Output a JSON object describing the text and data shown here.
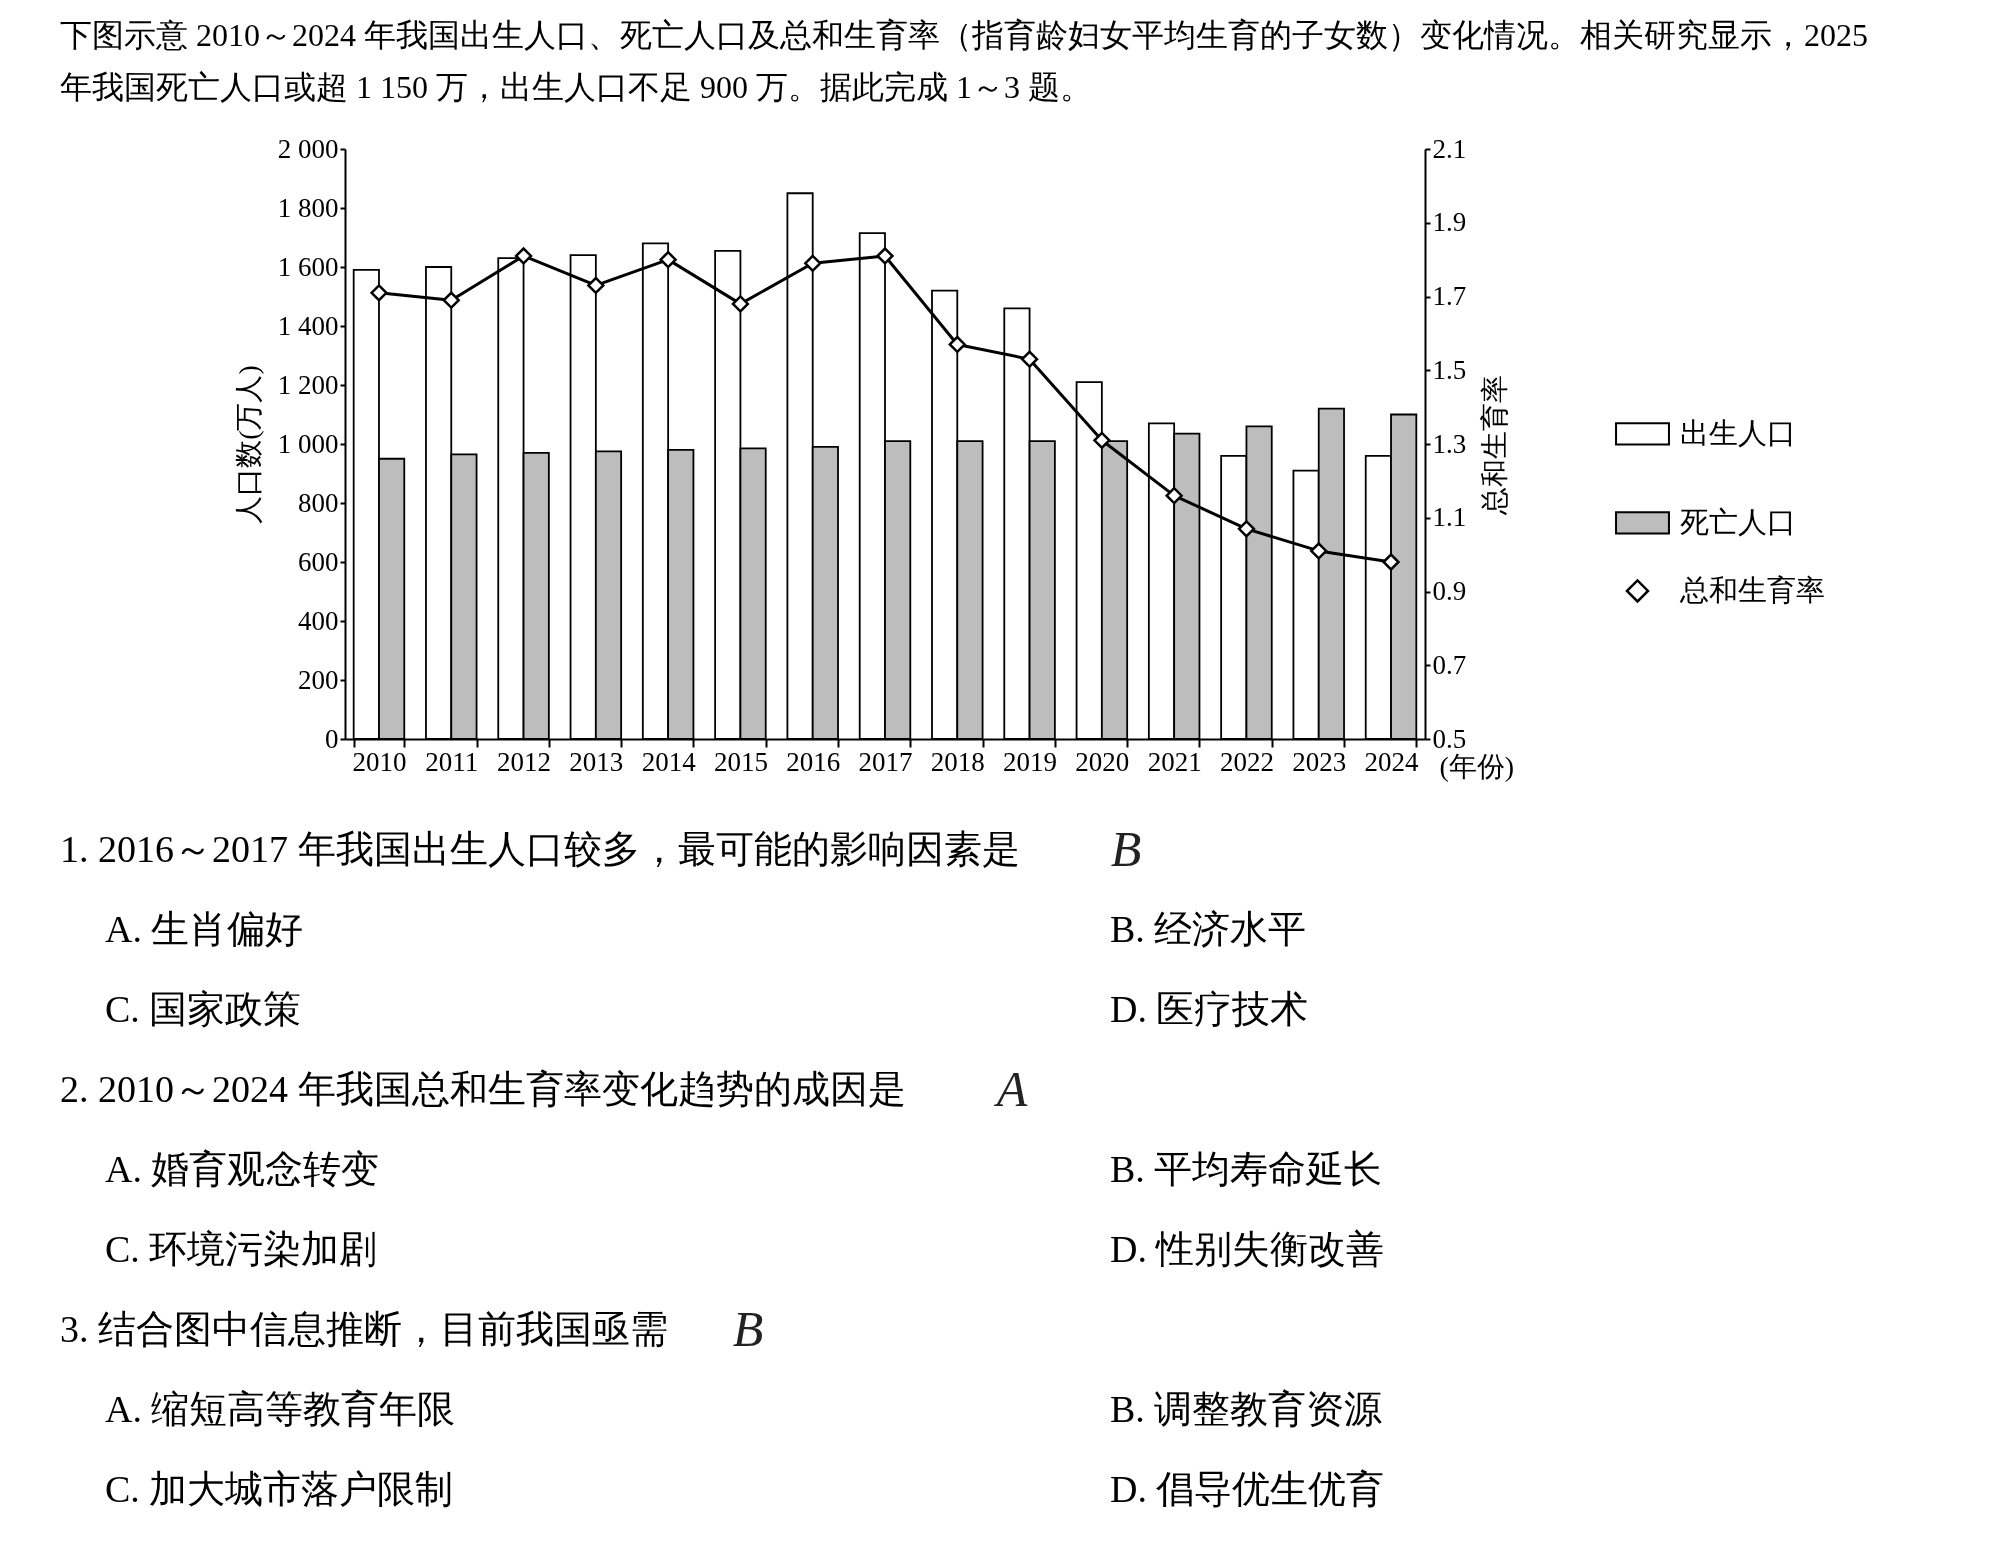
{
  "chart_data": {
    "type": "bar",
    "title": "下图示意 2010～2024 年我国出生人口、死亡人口及总和生育率（指育龄妇女平均生育的子女数）变化情况。相关研究显示，2025 年我国死亡人口或超 1 150 万，出生人口不足 900 万。据此完成 1～3 题。",
    "categories": [
      "2010",
      "2011",
      "2012",
      "2013",
      "2014",
      "2015",
      "2016",
      "2017",
      "2018",
      "2019",
      "2020",
      "2021",
      "2022",
      "2023",
      "2024"
    ],
    "xlabel": "(年份)",
    "ylabel": "人口数(万人)",
    "y2label": "总和生育率",
    "series": [
      {
        "name": "出生人口",
        "color": "#ffffff",
        "values": [
          1590,
          1600,
          1630,
          1640,
          1680,
          1655,
          1850,
          1715,
          1520,
          1460,
          1210,
          1070,
          960,
          910,
          960
        ]
      },
      {
        "name": "死亡人口",
        "color": "#bdbdbd",
        "values": [
          950,
          965,
          970,
          975,
          980,
          985,
          990,
          1010,
          1010,
          1010,
          1010,
          1035,
          1060,
          1120,
          1100
        ]
      },
      {
        "name": "总和生育率",
        "type": "line",
        "axis": "y2",
        "color": "#000000",
        "values": [
          1.71,
          1.69,
          1.81,
          1.73,
          1.8,
          1.68,
          1.79,
          1.81,
          1.57,
          1.53,
          1.31,
          1.16,
          1.07,
          1.01,
          0.98
        ]
      }
    ],
    "ylim": [
      0,
      2000
    ],
    "yticks": [
      0,
      200,
      400,
      600,
      800,
      {
        "value": 1000,
        "label": "1 000"
      },
      {
        "value": 1200,
        "label": "1 200"
      },
      {
        "value": 1400,
        "label": "1 400"
      },
      {
        "value": 1600,
        "label": "1 600"
      },
      {
        "value": 1800,
        "label": "1 800"
      },
      {
        "value": 2000,
        "label": "2 000"
      }
    ],
    "y2lim": [
      0.5,
      2.1
    ],
    "y2ticks": [
      0.5,
      0.7,
      0.9,
      1.1,
      1.3,
      1.5,
      1.7,
      1.9,
      2.1
    ],
    "marker": "diamond",
    "legend": "right",
    "grid": false,
    "annotations": [
      "1. 2016～2017 年我国出生人口较多，最可能的影响因素是",
      "B",
      "A. 生肖偏好",
      "B. 经济水平",
      "C. 国家政策",
      "D. 医疗技术",
      "2. 2010～2024 年我国总和生育率变化趋势的成因是",
      "A",
      "A. 婚育观念转变",
      "B. 平均寿命延长",
      "C. 环境污染加剧",
      "D. 性别失衡改善",
      "3. 结合图中信息推断，目前我国亟需",
      "B",
      "A. 缩短高等教育年限",
      "B. 调整教育资源",
      "C. 加大城市落户限制",
      "D. 倡导优生优育"
    ]
  }
}
